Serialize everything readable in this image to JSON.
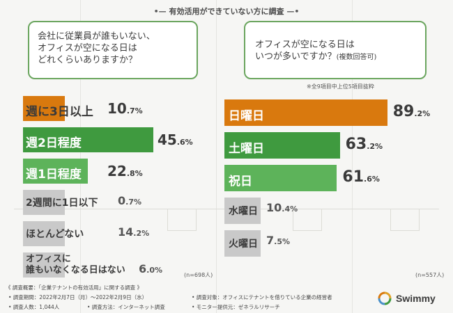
{
  "header": {
    "title": "有効活用ができていない方に調査"
  },
  "left": {
    "question_lines": [
      "会社に従業員が誰もいない、",
      "オフィスが空になる日は",
      "どれくらいありますか？"
    ],
    "n_label": "(n=698人)"
  },
  "right": {
    "question_lines": [
      "オフィスが空になる日は",
      "いつが多いですか？"
    ],
    "question_suffix": "(複数回答可)",
    "note": "※全9項目中上位5項目抜粋",
    "n_label": "(n=557人)"
  },
  "colors": {
    "orange": "#d9790e",
    "green_dark": "#3f9a3f",
    "green_mid": "#5db35a",
    "gray": "#c9c9c9",
    "text_dark": "#3a3a3a"
  },
  "chart_data": [
    {
      "type": "bar",
      "orientation": "horizontal",
      "title": "会社に従業員が誰もいない、オフィスが空になる日はどれくらいありますか？",
      "categories": [
        "週に3日以上",
        "週2日程度",
        "週1日程度",
        "2週間に1日以下",
        "ほとんどない",
        "オフィスに誰もいなくなる日はない"
      ],
      "category_lines": [
        [
          "週に3日以上"
        ],
        [
          "週2日程度"
        ],
        [
          "週1日程度"
        ],
        [
          "2週間に1日以下"
        ],
        [
          "ほとんどない"
        ],
        [
          "オフィスに",
          "誰もいなくなる日はない"
        ]
      ],
      "values": [
        10.7,
        45.6,
        22.8,
        0.7,
        14.2,
        6.0
      ],
      "value_labels": [
        "10.7%",
        "45.6%",
        "22.8%",
        "0.7%",
        "14.2%",
        "6.0%"
      ],
      "unit": "%",
      "n": "n=698人"
    },
    {
      "type": "bar",
      "orientation": "horizontal",
      "title": "オフィスが空になる日はいつが多いですか？(複数回答可)",
      "categories": [
        "日曜日",
        "土曜日",
        "祝日",
        "水曜日",
        "火曜日"
      ],
      "values": [
        89.2,
        63.2,
        61.6,
        10.4,
        7.5
      ],
      "value_labels": [
        "89.2%",
        "63.2%",
        "61.6%",
        "10.4%",
        "7.5%"
      ],
      "unit": "%",
      "n": "n=557人"
    }
  ],
  "footer": {
    "overview": "《 調査概要：「企業テナントの有効活用」に関する調査 》",
    "period": "• 調査期間：2022年2月7日（月）～2022年2月9日（水）",
    "people": "• 調査人数：1,044人",
    "method": "• 調査方法：インターネット調査",
    "target": "• 調査対象：オフィスにテナントを借りている企業の経営者",
    "monitor": "• モニター提供元：ゼネラルリサーチ",
    "brand": "Swimmy"
  }
}
